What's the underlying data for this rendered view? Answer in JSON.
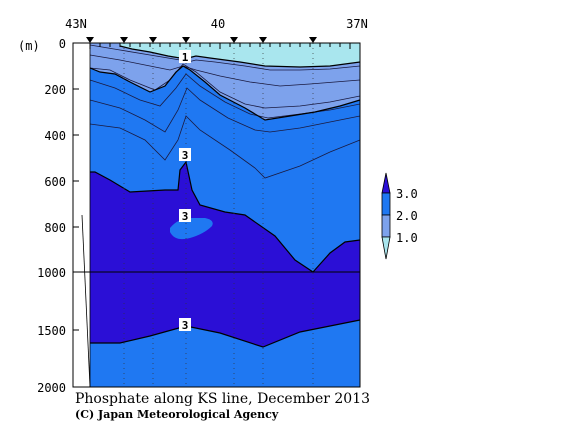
{
  "chart_data": {
    "type": "contour",
    "title": "Phosphate along KS line, December 2013",
    "credit": "(C) Japan Meteorological Agency",
    "x_ticks": [
      "43N",
      "40",
      "37N"
    ],
    "y_unit": "(m)",
    "y_ticks": [
      "0",
      "200",
      "400",
      "600",
      "800",
      "1000",
      "1500",
      "2000"
    ],
    "y_axis": {
      "upper_range": [
        0,
        1000
      ],
      "lower_range": [
        1000,
        2000
      ],
      "break_at": 1000,
      "inverted": true
    },
    "contour_labels": [
      "1",
      "3",
      "3",
      "3"
    ],
    "legend": {
      "levels": [
        "3.0",
        "2.0",
        "1.0"
      ],
      "colors": [
        "#2b0fd6",
        "#1f78f2",
        "#7da2ec",
        "#a9e6ee"
      ]
    },
    "fill_colors": {
      "band_lt_1": "#a9e6ee",
      "band_1_to_2": "#7da2ec",
      "band_2_to_3": "#1f78f2",
      "band_gt_3": "#2b0fd6"
    }
  }
}
